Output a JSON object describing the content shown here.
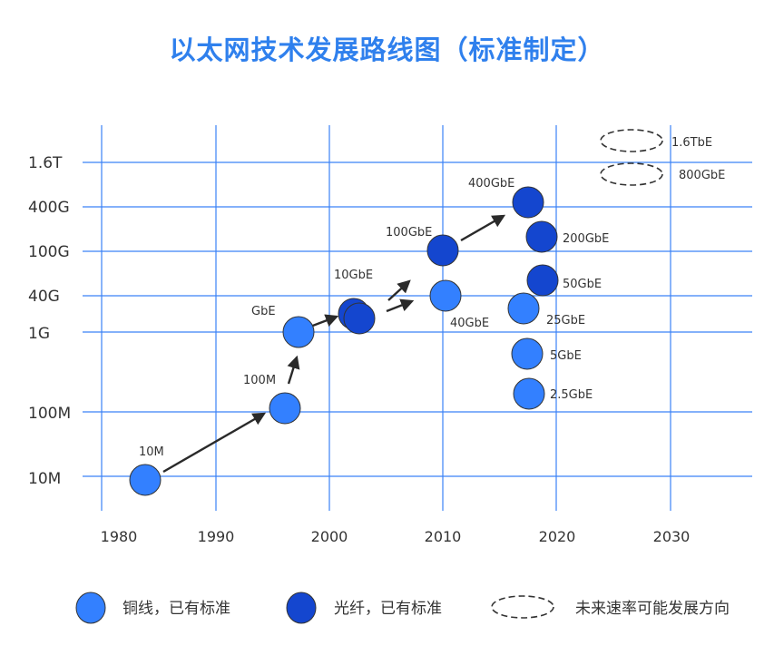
{
  "title": "以太网技术发展路线图（标准制定）",
  "y_axis": {
    "ticks": [
      "1.6T",
      "400G",
      "100G",
      "40G",
      "1G",
      "100M",
      "10M"
    ]
  },
  "x_axis": {
    "ticks": [
      "1980",
      "1990",
      "2000",
      "2010",
      "2020",
      "2030"
    ]
  },
  "colors": {
    "copper": "#3380ff",
    "fiber": "#1446cf",
    "grid": "#3b82f6",
    "title": "#2f80ed"
  },
  "points": [
    {
      "label": "10M",
      "medium": "copper"
    },
    {
      "label": "100M",
      "medium": "copper"
    },
    {
      "label": "GbE",
      "medium": "copper"
    },
    {
      "label": "10GbE",
      "medium": "fiber"
    },
    {
      "label": "100GbE",
      "medium": "fiber"
    },
    {
      "label": "40GbE",
      "medium": "copper"
    },
    {
      "label": "400GbE",
      "medium": "fiber"
    },
    {
      "label": "200GbE",
      "medium": "fiber"
    },
    {
      "label": "50GbE",
      "medium": "fiber"
    },
    {
      "label": "25GbE",
      "medium": "copper"
    },
    {
      "label": "5GbE",
      "medium": "copper"
    },
    {
      "label": "2.5GbE",
      "medium": "copper"
    },
    {
      "label": "1.6TbE",
      "medium": "future"
    },
    {
      "label": "800GbE",
      "medium": "future"
    }
  ],
  "legend": {
    "copper": "铜线，已有标准",
    "fiber": "光纤，已有标准",
    "future": "未来速率可能发展方向"
  }
}
